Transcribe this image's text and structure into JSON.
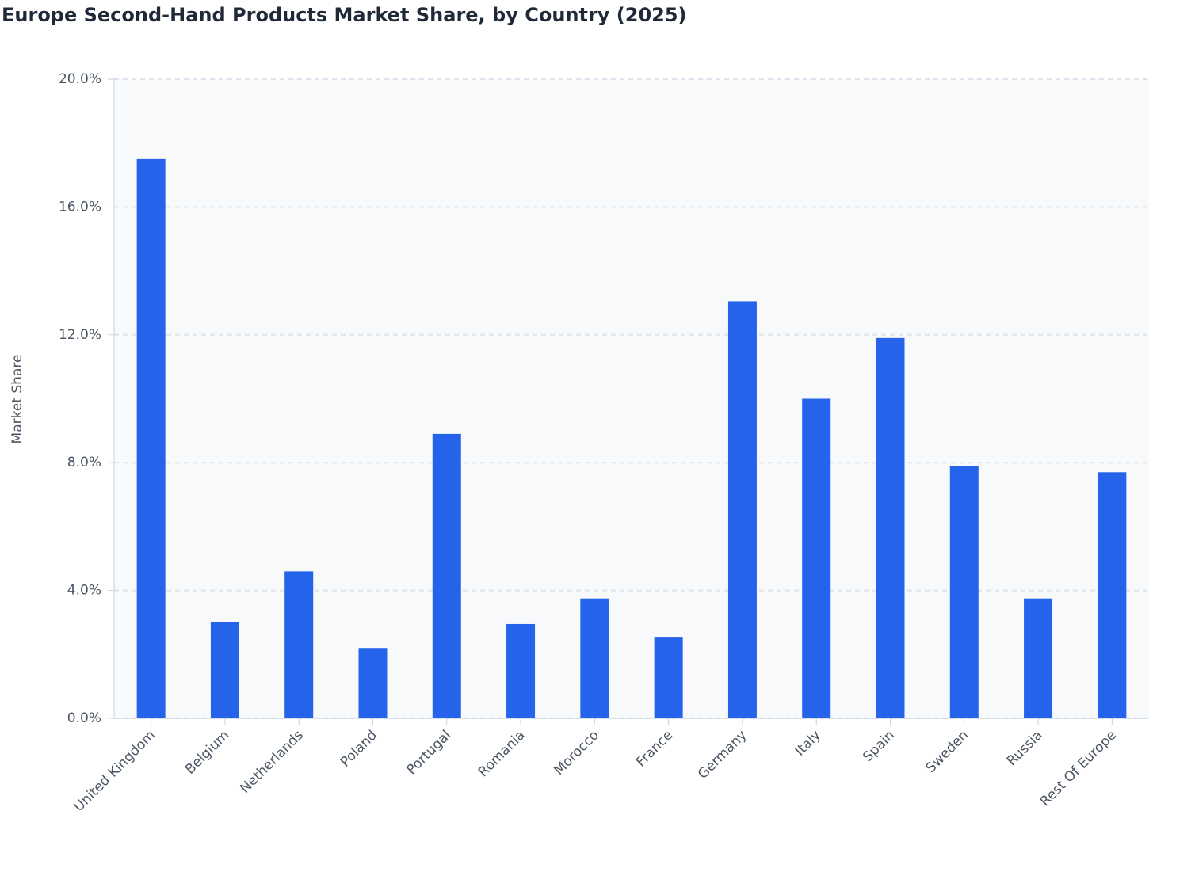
{
  "chart_data": {
    "type": "bar",
    "title": "Europe Second-Hand Products Market Share, by Country (2025)",
    "y_label": "Market Share",
    "categories": [
      "United Kingdom",
      "Belgium",
      "Netherlands",
      "Poland",
      "Portugal",
      "Romania",
      "Morocco",
      "France",
      "Germany",
      "Italy",
      "Spain",
      "Sweden",
      "Russia",
      "Rest Of Europe"
    ],
    "values": [
      17.5,
      3.0,
      4.6,
      2.2,
      8.9,
      2.95,
      3.75,
      2.55,
      13.05,
      10.0,
      11.9,
      7.9,
      3.75,
      7.7
    ],
    "color": "#2563eb",
    "ylim": [
      0,
      20
    ],
    "yticks": [
      {
        "value": 0,
        "label": "0.0%"
      },
      {
        "value": 4,
        "label": "4.0%"
      },
      {
        "value": 8,
        "label": "8.0%"
      },
      {
        "value": 12,
        "label": "12.0%"
      },
      {
        "value": 16,
        "label": "16.0%"
      },
      {
        "value": 20,
        "label": "20.0%"
      }
    ],
    "grid": true
  }
}
